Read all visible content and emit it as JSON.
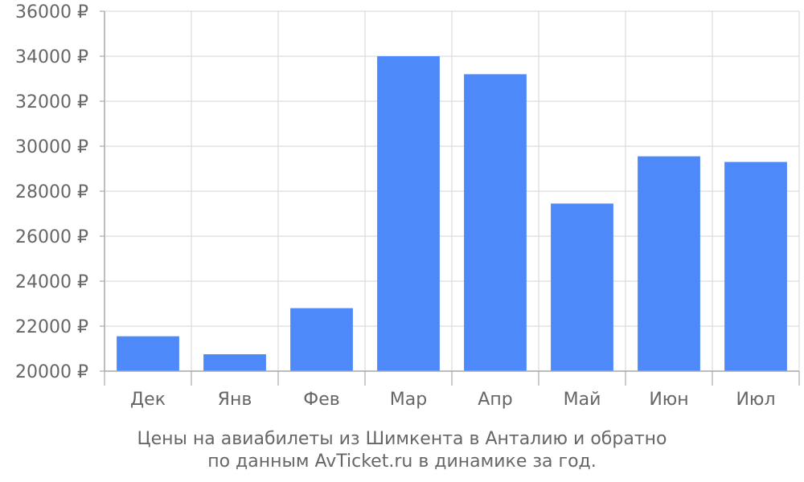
{
  "chart_data": {
    "type": "bar",
    "categories": [
      "Дек",
      "Янв",
      "Фев",
      "Мар",
      "Апр",
      "Май",
      "Июн",
      "Июл"
    ],
    "values": [
      21550,
      20750,
      22800,
      34000,
      33200,
      27450,
      29550,
      29300
    ],
    "ylim": [
      20000,
      36000
    ],
    "yticks": [
      20000,
      22000,
      24000,
      26000,
      28000,
      30000,
      32000,
      34000,
      36000
    ],
    "ytick_labels": [
      "20000 ₽",
      "22000 ₽",
      "24000 ₽",
      "26000 ₽",
      "28000 ₽",
      "30000 ₽",
      "32000 ₽",
      "34000 ₽",
      "36000 ₽"
    ],
    "bar_color": "#4d89f9",
    "grid": true,
    "legend": "none"
  },
  "caption": {
    "line1": "Цены на авиабилеты из Шимкента в Анталию и обратно",
    "line2": "по данным AvTicket.ru в динамике за год."
  }
}
